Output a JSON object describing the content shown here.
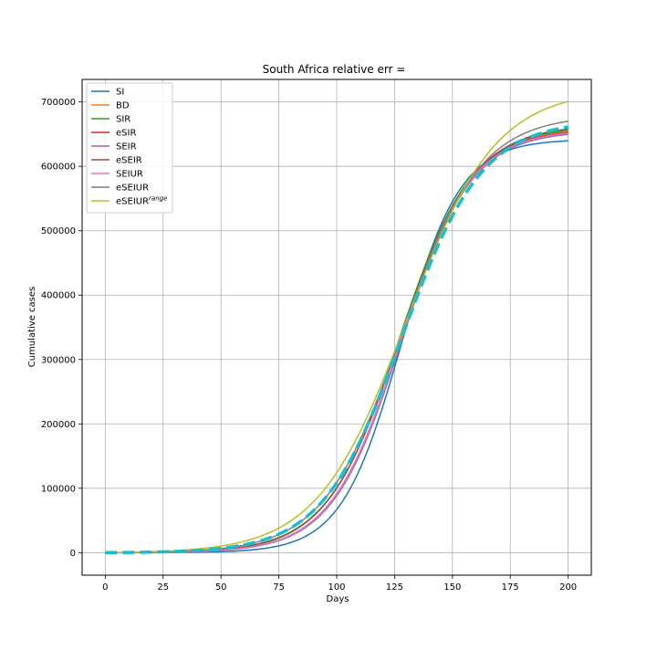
{
  "chart_data": {
    "type": "line",
    "title": "South Africa relative err =",
    "xlabel": "Days",
    "ylabel": "Cumulative cases",
    "xlim": [
      -10,
      210
    ],
    "ylim": [
      -35000,
      735000
    ],
    "xticks": [
      0,
      25,
      50,
      75,
      100,
      125,
      150,
      175,
      200
    ],
    "yticks": [
      0,
      100000,
      200000,
      300000,
      400000,
      500000,
      600000,
      700000
    ],
    "grid": true,
    "legend_position": "upper left",
    "series": [
      {
        "name": "SI",
        "color": "#1f77b4",
        "style": "solid",
        "K": 642000,
        "r": 0.0775,
        "t0": 127.7
      },
      {
        "name": "BD",
        "color": "#ff7f0e",
        "style": "solid",
        "K": 660000,
        "r": 0.064,
        "t0": 126.8
      },
      {
        "name": "SIR",
        "color": "#2ca02c",
        "style": "solid",
        "K": 662000,
        "r": 0.064,
        "t0": 126.9
      },
      {
        "name": "eSIR",
        "color": "#d62728",
        "style": "solid",
        "K": 658000,
        "r": 0.066,
        "t0": 127.6
      },
      {
        "name": "SEIR",
        "color": "#9467bd",
        "style": "solid",
        "K": 655000,
        "r": 0.0665,
        "t0": 127.9
      },
      {
        "name": "eSEIR",
        "color": "#8c564b",
        "style": "solid",
        "K": 665000,
        "r": 0.063,
        "t0": 127.3
      },
      {
        "name": "SEIUR",
        "color": "#e377c2",
        "style": "solid",
        "K": 657000,
        "r": 0.066,
        "t0": 127.6
      },
      {
        "name": "eSEIUR",
        "color": "#7f7f7f",
        "style": "solid",
        "K": 680000,
        "r": 0.059,
        "t0": 128.0
      },
      {
        "name": "eSEIUR",
        "name_sup": "range",
        "color": "#bcbd22",
        "style": "solid",
        "K": 720000,
        "r": 0.052,
        "t0": 130.0
      },
      {
        "name": "",
        "color": "#17becf",
        "style": "dashed",
        "K": 672000,
        "r": 0.058,
        "t0": 128.3
      }
    ]
  }
}
